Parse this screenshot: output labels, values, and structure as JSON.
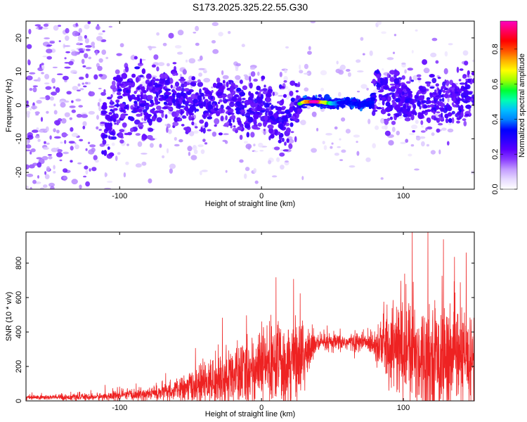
{
  "title": "S173.2025.325.22.55.G30",
  "chart_data": [
    {
      "type": "heatmap",
      "xlabel": "Height of straight line (km)",
      "ylabel": "Frequency (Hz)",
      "xlim": [
        -166,
        150
      ],
      "ylim": [
        -25,
        25
      ],
      "xticks": [
        -100,
        0,
        100
      ],
      "yticks": [
        -20,
        -10,
        0,
        10,
        20
      ],
      "colorbar": {
        "label": "Normalized spectral amplitude",
        "range": [
          0,
          0.96
        ],
        "ticks": [
          "0.0",
          "0.2",
          "0.4",
          "0.6",
          "0.8"
        ],
        "tick_values": [
          0,
          0.2,
          0.4,
          0.6,
          0.8
        ],
        "colormap": [
          "#ffffff",
          "#e6d9ff",
          "#c39cff",
          "#8a3dff",
          "#5a00ff",
          "#2a00ff",
          "#0000ff",
          "#0080ff",
          "#00c0ff",
          "#00ffb0",
          "#00ff30",
          "#a0ff00",
          "#ffff00",
          "#ffb000",
          "#ff5000",
          "#ff0000",
          "#ff0060",
          "#ff00c0"
        ]
      },
      "signal_path": [
        {
          "x": -110,
          "f": -8
        },
        {
          "x": -100,
          "f": 2
        },
        {
          "x": -90,
          "f": 2
        },
        {
          "x": -80,
          "f": 0
        },
        {
          "x": -70,
          "f": 4
        },
        {
          "x": -60,
          "f": 2
        },
        {
          "x": -50,
          "f": 0
        },
        {
          "x": -40,
          "f": -1
        },
        {
          "x": -30,
          "f": 2
        },
        {
          "x": -20,
          "f": 0
        },
        {
          "x": -10,
          "f": -2
        },
        {
          "x": 0,
          "f": 0
        },
        {
          "x": 10,
          "f": -4
        },
        {
          "x": 20,
          "f": -3
        },
        {
          "x": 25,
          "f": 0
        },
        {
          "x": 30,
          "f": 1
        },
        {
          "x": 40,
          "f": 1
        },
        {
          "x": 50,
          "f": 0.5
        },
        {
          "x": 60,
          "f": 1
        },
        {
          "x": 70,
          "f": 0
        },
        {
          "x": 78,
          "f": 1
        },
        {
          "x": 82,
          "f": 6
        },
        {
          "x": 90,
          "f": 3
        },
        {
          "x": 100,
          "f": 2
        },
        {
          "x": 110,
          "f": 0
        },
        {
          "x": 120,
          "f": 3
        },
        {
          "x": 130,
          "f": 0
        },
        {
          "x": 140,
          "f": 2
        },
        {
          "x": 150,
          "f": 5
        }
      ],
      "peak": {
        "x": 37,
        "f": 1,
        "amplitude": 0.96
      }
    },
    {
      "type": "line",
      "xlabel": "Height of straight line (km)",
      "ylabel": "SNR (10 * v/v)",
      "xlim": [
        -166,
        150
      ],
      "ylim": [
        0,
        980
      ],
      "xticks": [
        -100,
        0,
        100
      ],
      "yticks": [
        0,
        200,
        400,
        600,
        800
      ],
      "series_color": "#ee2222",
      "envelope": [
        {
          "x": -166,
          "base": 20,
          "spread": 15
        },
        {
          "x": -120,
          "base": 22,
          "spread": 20
        },
        {
          "x": -100,
          "base": 30,
          "spread": 30
        },
        {
          "x": -80,
          "base": 40,
          "spread": 40
        },
        {
          "x": -60,
          "base": 60,
          "spread": 60
        },
        {
          "x": -45,
          "base": 90,
          "spread": 110
        },
        {
          "x": -30,
          "base": 120,
          "spread": 150
        },
        {
          "x": -15,
          "base": 150,
          "spread": 190
        },
        {
          "x": 0,
          "base": 200,
          "spread": 220
        },
        {
          "x": 15,
          "base": 230,
          "spread": 260
        },
        {
          "x": 30,
          "base": 260,
          "spread": 240
        },
        {
          "x": 38,
          "base": 330,
          "spread": 60
        },
        {
          "x": 60,
          "base": 340,
          "spread": 50
        },
        {
          "x": 78,
          "base": 340,
          "spread": 70
        },
        {
          "x": 88,
          "base": 320,
          "spread": 220
        },
        {
          "x": 100,
          "base": 290,
          "spread": 330
        },
        {
          "x": 120,
          "base": 250,
          "spread": 320
        },
        {
          "x": 150,
          "base": 240,
          "spread": 300
        }
      ],
      "max_value": 980
    }
  ]
}
